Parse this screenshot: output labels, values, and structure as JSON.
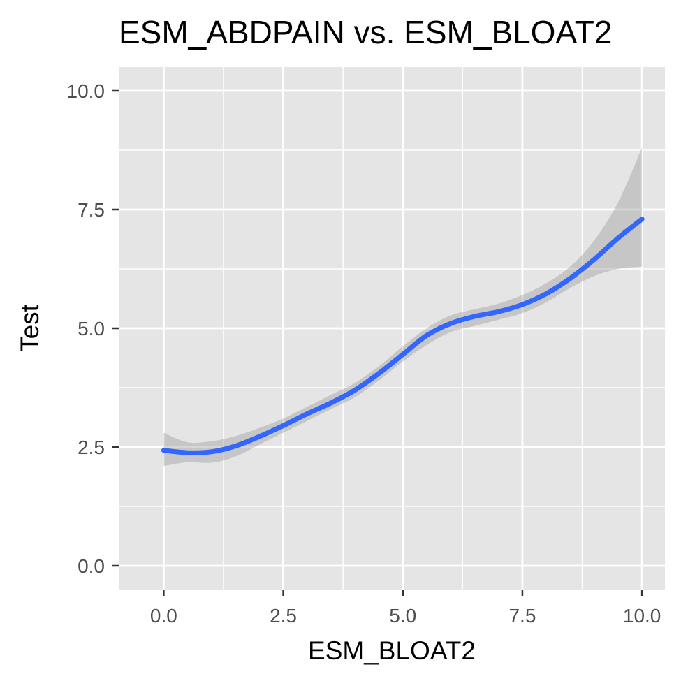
{
  "chart_data": {
    "type": "line",
    "title": "ESM_ABDPAIN vs. ESM_BLOAT2",
    "xlabel": "ESM_BLOAT2",
    "ylabel": "Test",
    "xlim": [
      -0.94,
      10.48
    ],
    "ylim": [
      -0.5,
      10.5
    ],
    "x_ticks": [
      0,
      2.5,
      5,
      7.5,
      10
    ],
    "x_tick_labels": [
      "0.0",
      "2.5",
      "5.0",
      "7.5",
      "10.0"
    ],
    "y_ticks": [
      0,
      2.5,
      5,
      7.5,
      10
    ],
    "y_tick_labels": [
      "0.0",
      "2.5",
      "5.0",
      "7.5",
      "10.0"
    ],
    "grid": true,
    "colors": {
      "line": "#3366ff",
      "ribbon": "#999999",
      "panel": "#e5e5e5",
      "grid": "#ffffff"
    },
    "series": [
      {
        "x": [
          0,
          0.5,
          1,
          1.5,
          2,
          2.5,
          3,
          3.5,
          4,
          4.5,
          5,
          5.5,
          6,
          6.5,
          7,
          7.5,
          8,
          8.5,
          9,
          9.5,
          10
        ],
        "y": [
          2.43,
          2.38,
          2.4,
          2.52,
          2.72,
          2.95,
          3.2,
          3.43,
          3.7,
          4.05,
          4.45,
          4.85,
          5.1,
          5.25,
          5.35,
          5.5,
          5.73,
          6.05,
          6.45,
          6.9,
          7.3
        ],
        "lower": [
          2.1,
          2.18,
          2.17,
          2.3,
          2.55,
          2.8,
          3.05,
          3.3,
          3.55,
          3.9,
          4.3,
          4.65,
          4.92,
          5.05,
          5.18,
          5.32,
          5.55,
          5.85,
          6.1,
          6.25,
          6.3
        ],
        "upper": [
          2.8,
          2.6,
          2.62,
          2.73,
          2.9,
          3.1,
          3.35,
          3.6,
          3.85,
          4.2,
          4.62,
          5.0,
          5.27,
          5.4,
          5.52,
          5.7,
          5.95,
          6.3,
          6.85,
          7.65,
          8.8
        ]
      }
    ]
  }
}
